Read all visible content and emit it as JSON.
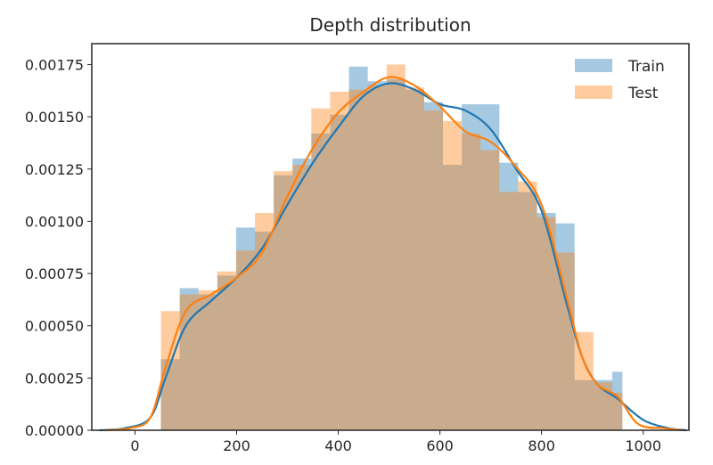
{
  "chart_data": {
    "type": "histogram",
    "title": "Depth distribution",
    "xlabel": "",
    "ylabel": "",
    "xlim": [
      -85,
      1090
    ],
    "ylim": [
      0,
      0.00185
    ],
    "x_ticks": [
      0,
      200,
      400,
      600,
      800,
      1000
    ],
    "y_ticks": [
      0.0,
      0.00025,
      0.0005,
      0.00075,
      0.001,
      0.00125,
      0.0015,
      0.00175
    ],
    "y_tick_labels": [
      "0.00000",
      "0.00025",
      "0.00050",
      "0.00075",
      "0.00100",
      "0.00125",
      "0.00150",
      "0.00175"
    ],
    "grid": false,
    "legend_position": "top-right",
    "series": [
      {
        "name": "Train",
        "color": "#1f77b4",
        "bin_edges": [
          51,
          88,
          125,
          162,
          199,
          236,
          273,
          310,
          347,
          384,
          421,
          458,
          495,
          532,
          569,
          606,
          643,
          680,
          717,
          754,
          791,
          828,
          865,
          902,
          939,
          959
        ],
        "hist_values": [
          0.00034,
          0.00068,
          0.00065,
          0.00074,
          0.00097,
          0.00095,
          0.00122,
          0.0013,
          0.00142,
          0.00151,
          0.00174,
          0.00167,
          0.00168,
          0.00163,
          0.00157,
          0.00127,
          0.00156,
          0.00156,
          0.00128,
          0.00114,
          0.00104,
          0.00099,
          0.00024,
          0.00024,
          0.00028
        ],
        "kde_x": [
          -70,
          -20,
          30,
          60,
          100,
          150,
          200,
          250,
          300,
          350,
          400,
          450,
          500,
          550,
          600,
          650,
          700,
          750,
          800,
          850,
          880,
          910,
          950,
          1000,
          1050,
          1085
        ],
        "kde_y": [
          0.0,
          1e-05,
          6e-05,
          0.00025,
          0.0005,
          0.00062,
          0.00073,
          0.00087,
          0.00108,
          0.00128,
          0.00145,
          0.0016,
          0.00166,
          0.00163,
          0.00156,
          0.00153,
          0.00144,
          0.00125,
          0.00105,
          0.0006,
          0.00035,
          0.00022,
          0.00015,
          5e-05,
          1e-05,
          0.0
        ]
      },
      {
        "name": "Test",
        "color": "#ff7f0e",
        "bin_edges": [
          51,
          88,
          125,
          162,
          199,
          236,
          273,
          310,
          347,
          384,
          421,
          458,
          495,
          532,
          569,
          606,
          643,
          680,
          717,
          754,
          791,
          828,
          865,
          902,
          939,
          959
        ],
        "hist_values": [
          0.00057,
          0.00065,
          0.00067,
          0.00076,
          0.00086,
          0.00104,
          0.00124,
          0.00127,
          0.00154,
          0.00162,
          0.00163,
          0.00165,
          0.00175,
          0.00164,
          0.00153,
          0.00148,
          0.00142,
          0.00134,
          0.00114,
          0.00119,
          0.00102,
          0.00085,
          0.00047,
          0.00023,
          0.00018
        ],
        "kde_x": [
          -60,
          -10,
          30,
          60,
          100,
          150,
          200,
          250,
          300,
          350,
          400,
          450,
          500,
          550,
          600,
          650,
          700,
          750,
          800,
          850,
          880,
          910,
          950,
          990,
          1040,
          1075
        ],
        "kde_y": [
          0.0,
          1e-05,
          6e-05,
          0.0003,
          0.00057,
          0.00065,
          0.00073,
          0.00085,
          0.00112,
          0.00135,
          0.00152,
          0.00162,
          0.00169,
          0.00165,
          0.00155,
          0.00143,
          0.00138,
          0.00126,
          0.00108,
          0.00063,
          0.00035,
          0.00022,
          0.00016,
          3e-05,
          1e-05,
          0.0
        ]
      }
    ]
  }
}
